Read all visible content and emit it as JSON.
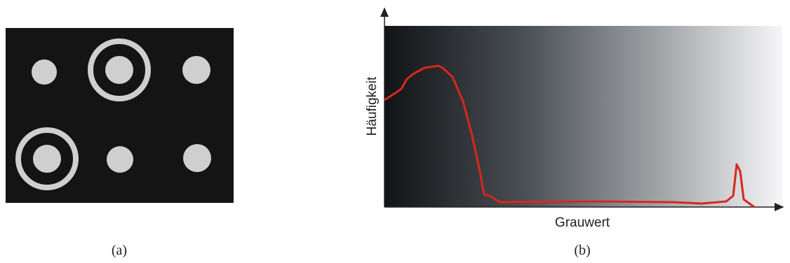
{
  "panels": [
    {
      "caption": "(a)"
    },
    {
      "caption": "(b)",
      "y_label": "Häufigkeit",
      "x_label": "Grauwert"
    }
  ]
}
